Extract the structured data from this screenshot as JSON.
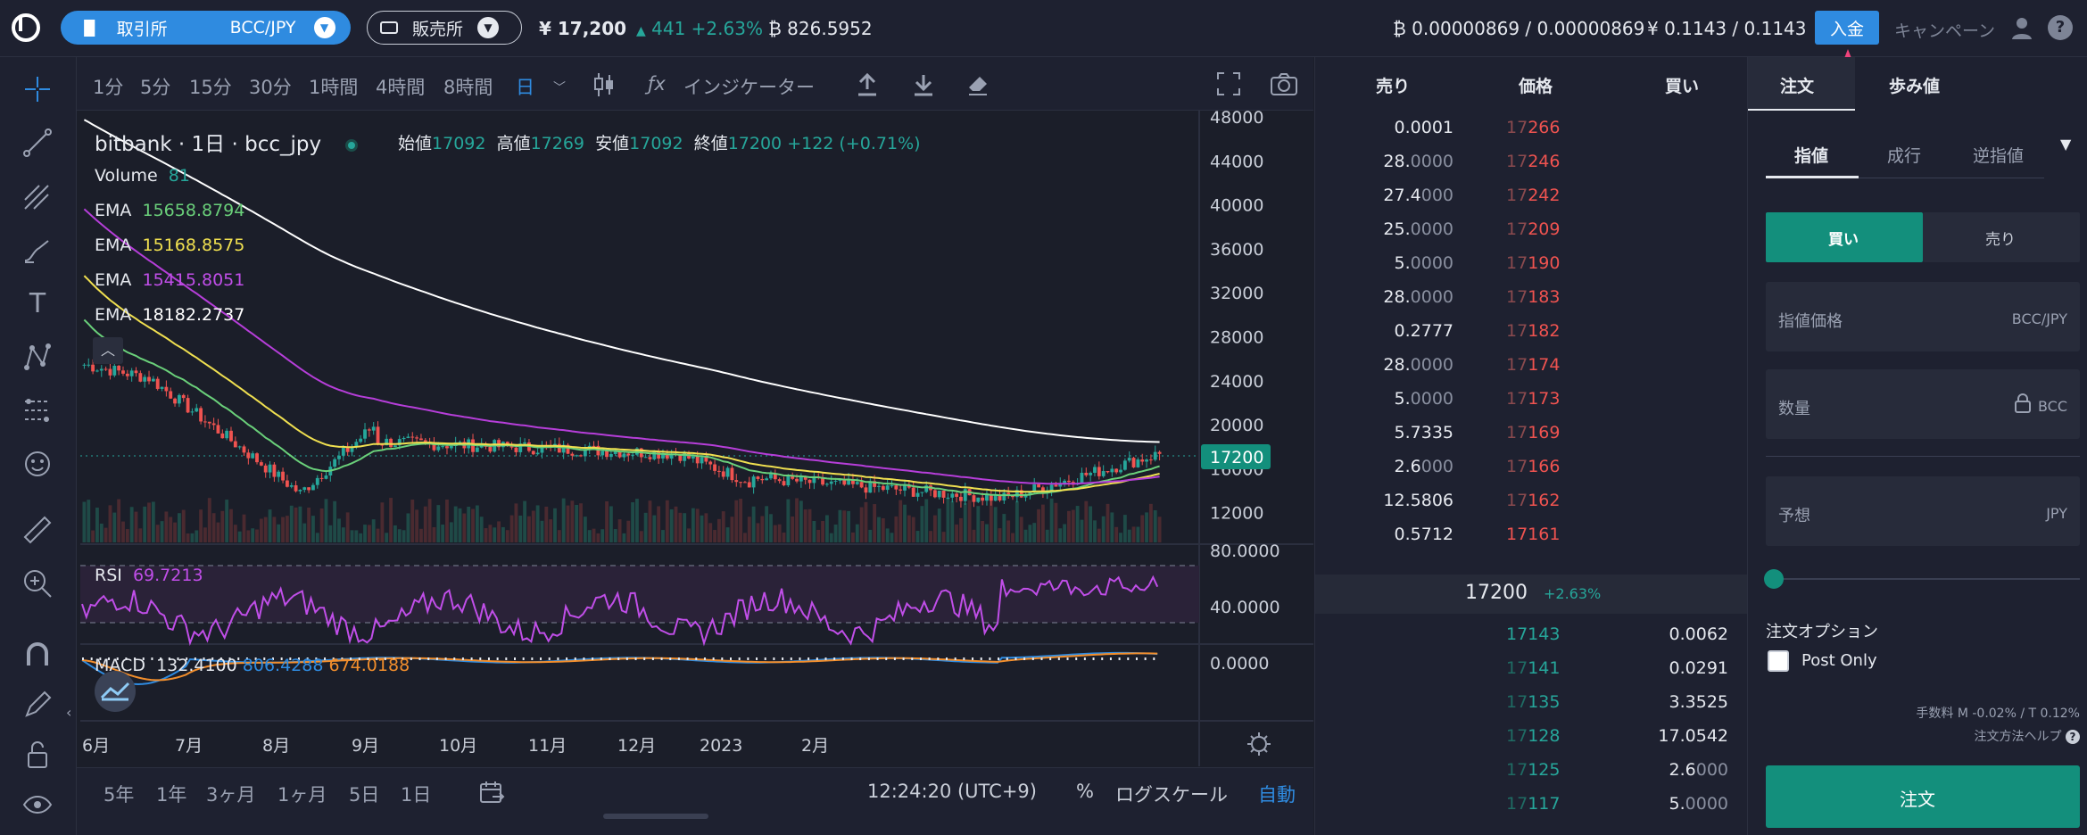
{
  "header": {
    "exchange_label": "取引所",
    "pair": "BCC/JPY",
    "store_label": "販売所",
    "price": "¥ 17,200",
    "change": "441 +2.63%",
    "btc_volume": "826.5952",
    "btc_balance": "0.00000869 / 0.00000869",
    "jpy_balance": "0.1143 / 0.1143",
    "deposit": "入金",
    "campaign": "キャンペーン"
  },
  "timeframes": [
    "1分",
    "5分",
    "15分",
    "30分",
    "1時間",
    "4時間",
    "8時間",
    "日"
  ],
  "indicators_label": "インジケーター",
  "legend": {
    "exchange": "bitbank",
    "interval": "1日",
    "symbol": "bcc_jpy",
    "open_label": "始値",
    "open": "17092",
    "high_label": "高値",
    "high": "17269",
    "low_label": "安値",
    "low": "17092",
    "close_label": "終値",
    "close": "17200",
    "change": "+122 (+0.71%)",
    "volume_label": "Volume",
    "volume": "81",
    "ema_label": "EMA",
    "ema": [
      "15658.8794",
      "15168.8575",
      "15415.8051",
      "18182.2737"
    ],
    "rsi_label": "RSI",
    "rsi": "69.7213",
    "macd_label": "MACD",
    "macd": [
      "132.4100",
      "806.4288",
      "674.0188"
    ]
  },
  "price_axis": [
    "48000",
    "44000",
    "40000",
    "36000",
    "32000",
    "28000",
    "24000",
    "20000",
    "16000",
    "12000"
  ],
  "current_price_tag": "17200",
  "rsi_axis": [
    "80.0000",
    "40.0000"
  ],
  "macd_axis": "0.0000",
  "time_axis": [
    "6月",
    "7月",
    "8月",
    "9月",
    "10月",
    "11月",
    "12月",
    "2023",
    "2月"
  ],
  "ranges": [
    "5年",
    "1年",
    "3ヶ月",
    "1ヶ月",
    "5日",
    "1日"
  ],
  "clock": "12:24:20 (UTC+9)",
  "scale_options": {
    "percent": "%",
    "log": "ログスケール",
    "auto": "自動"
  },
  "orderbook": {
    "headers": {
      "sell": "売り",
      "price": "価格",
      "buy": "買い"
    },
    "asks": [
      {
        "q_main": "0.0001",
        "q_dim": "",
        "p_dim": "17",
        "p_main": "266"
      },
      {
        "q_main": "28.",
        "q_dim": "0000",
        "p_dim": "17",
        "p_main": "246"
      },
      {
        "q_main": "27.4",
        "q_dim": "000",
        "p_dim": "17",
        "p_main": "242"
      },
      {
        "q_main": "25.",
        "q_dim": "0000",
        "p_dim": "17",
        "p_main": "209"
      },
      {
        "q_main": "5.",
        "q_dim": "0000",
        "p_dim": "17",
        "p_main": "190"
      },
      {
        "q_main": "28.",
        "q_dim": "0000",
        "p_dim": "17",
        "p_main": "183"
      },
      {
        "q_main": "0.2777",
        "q_dim": "",
        "p_dim": "17",
        "p_main": "182"
      },
      {
        "q_main": "28.",
        "q_dim": "0000",
        "p_dim": "17",
        "p_main": "174"
      },
      {
        "q_main": "5.",
        "q_dim": "0000",
        "p_dim": "17",
        "p_main": "173"
      },
      {
        "q_main": "5.7335",
        "q_dim": "",
        "p_dim": "17",
        "p_main": "169"
      },
      {
        "q_main": "2.6",
        "q_dim": "000",
        "p_dim": "17",
        "p_main": "166"
      },
      {
        "q_main": "12.5806",
        "q_dim": "",
        "p_dim": "17",
        "p_main": "162"
      },
      {
        "q_main": "0.5712",
        "q_dim": "",
        "p_dim": "",
        "p_main": "17161"
      }
    ],
    "mid_price": "17200",
    "mid_change": "+2.63%",
    "bids": [
      {
        "p_main": "17143",
        "p_dim": "",
        "q_main": "0.0062",
        "q_dim": ""
      },
      {
        "p_dim": "17",
        "p_main": "141",
        "q_main": "0.0291",
        "q_dim": ""
      },
      {
        "p_dim": "17",
        "p_main": "135",
        "q_main": "3.3525",
        "q_dim": ""
      },
      {
        "p_dim": "17",
        "p_main": "128",
        "q_main": "17.0542",
        "q_dim": ""
      },
      {
        "p_dim": "17",
        "p_main": "125",
        "q_main": "2.6",
        "q_dim": "000"
      },
      {
        "p_dim": "17",
        "p_main": "117",
        "q_main": "5.",
        "q_dim": "0000"
      }
    ]
  },
  "order_panel": {
    "tabs": [
      "注文",
      "歩み値"
    ],
    "types": [
      "指値",
      "成行",
      "逆指値"
    ],
    "buy": "買い",
    "sell": "売り",
    "limit_price": "指値価格",
    "pair": "BCC/JPY",
    "quantity": "数量",
    "unit": "BCC",
    "estimate": "予想",
    "jpy": "JPY",
    "options_label": "注文オプション",
    "post_only": "Post Only",
    "fee": "手数料 M -0.02% / T 0.12%",
    "help": "注文方法ヘルプ",
    "submit": "注文"
  },
  "colors": {
    "up": "#26a69a",
    "down": "#ef5350",
    "accent": "#2f8be0",
    "teal": "#138f7c"
  }
}
